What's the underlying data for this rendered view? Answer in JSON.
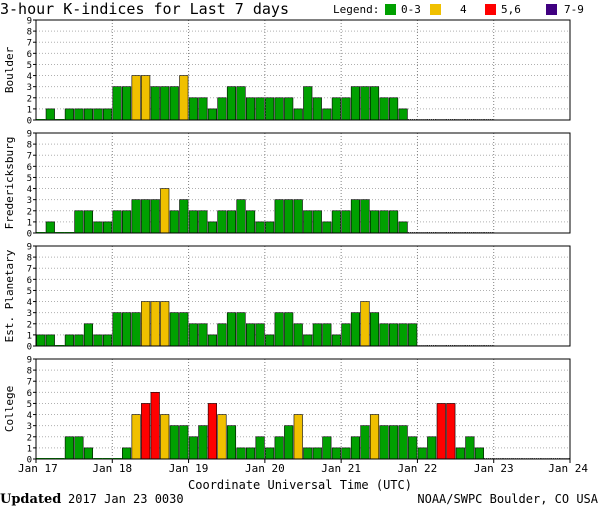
{
  "title": "3-hour K-indices for Last 7 days",
  "legend": {
    "label": "Legend:",
    "items": [
      {
        "label": "0-3",
        "color": "#00a000"
      },
      {
        "label": "4",
        "color": "#f0c000"
      },
      {
        "label": "5,6",
        "color": "#ff0000"
      },
      {
        "label": "7-9",
        "color": "#400080"
      }
    ]
  },
  "footer": {
    "updated_label": "Updated",
    "updated_value": "2017 Jan 23 0030",
    "credit": "NOAA/SWPC Boulder, CO USA"
  },
  "chart_data": {
    "type": "bar",
    "xlabel": "Coordinate Universal Time (UTC)",
    "x_ticks": [
      "Jan 17",
      "Jan 18",
      "Jan 19",
      "Jan 20",
      "Jan 21",
      "Jan 22",
      "Jan 23",
      "Jan 24"
    ],
    "y_ticks": [
      "0",
      "1",
      "2",
      "3",
      "4",
      "5",
      "6",
      "7",
      "8",
      "9"
    ],
    "ylim": [
      0,
      9
    ],
    "bins_per_day": 8,
    "color_bins": [
      {
        "range": "0-3",
        "color": "#00a000"
      },
      {
        "range": "4",
        "color": "#f0c000"
      },
      {
        "range": "5,6",
        "color": "#ff0000"
      },
      {
        "range": "7-9",
        "color": "#400080"
      }
    ],
    "panels": [
      {
        "name": "Boulder",
        "values": [
          0,
          1,
          0,
          1,
          1,
          1,
          1,
          1,
          3,
          3,
          4,
          4,
          3,
          3,
          3,
          4,
          2,
          2,
          1,
          2,
          3,
          3,
          2,
          2,
          2,
          2,
          2,
          1,
          3,
          2,
          1,
          2,
          2,
          3,
          3,
          3,
          2,
          2,
          1,
          null,
          null,
          null,
          null,
          null,
          null,
          null,
          null,
          null
        ]
      },
      {
        "name": "Fredericksburg",
        "values": [
          0,
          1,
          0,
          0,
          2,
          2,
          1,
          1,
          2,
          2,
          3,
          3,
          3,
          4,
          2,
          3,
          2,
          2,
          1,
          2,
          2,
          3,
          2,
          1,
          1,
          3,
          3,
          3,
          2,
          2,
          1,
          2,
          2,
          3,
          3,
          2,
          2,
          2,
          1,
          null,
          null,
          null,
          null,
          null,
          null,
          null,
          null,
          null
        ]
      },
      {
        "name": "Est. Planetary",
        "values": [
          1,
          1,
          0,
          1,
          1,
          2,
          1,
          1,
          3,
          3,
          3,
          4,
          4,
          4,
          3,
          3,
          2,
          2,
          1,
          2,
          3,
          3,
          2,
          2,
          1,
          3,
          3,
          2,
          1,
          2,
          2,
          1,
          2,
          3,
          4,
          3,
          2,
          2,
          2,
          2,
          null,
          null,
          null,
          null,
          null,
          null,
          null,
          null
        ]
      },
      {
        "name": "College",
        "values": [
          0,
          0,
          0,
          2,
          2,
          1,
          0,
          0,
          0,
          1,
          4,
          5,
          6,
          4,
          3,
          3,
          2,
          3,
          5,
          4,
          3,
          1,
          1,
          2,
          1,
          2,
          3,
          4,
          1,
          1,
          2,
          1,
          1,
          2,
          3,
          4,
          3,
          3,
          3,
          2,
          1,
          2,
          5,
          5,
          1,
          2,
          1,
          null,
          null,
          null,
          null,
          null,
          null,
          null,
          null,
          null
        ]
      }
    ]
  }
}
